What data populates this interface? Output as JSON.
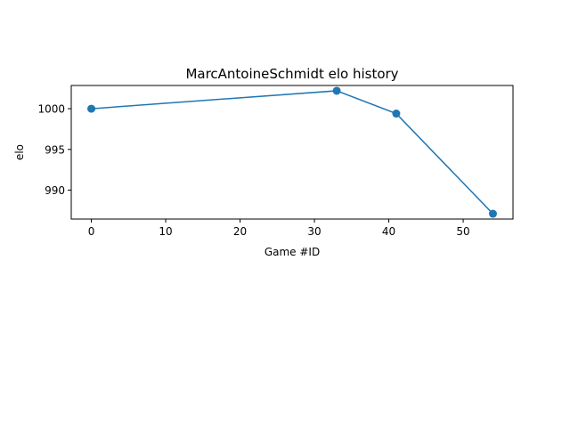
{
  "chart_data": {
    "type": "line",
    "title": "MarcAntoineSchmidt elo history",
    "xlabel": "Game #ID",
    "ylabel": "elo",
    "x": [
      0,
      33,
      41,
      54
    ],
    "series": [
      {
        "values": [
          1000.0,
          1002.2,
          999.4,
          987.1
        ],
        "color": "#1f77b4",
        "marker": "circle"
      }
    ],
    "xlim": [
      -2.7,
      56.7
    ],
    "ylim": [
      986.45,
      1002.85
    ],
    "xticks": [
      0,
      10,
      20,
      30,
      40,
      50
    ],
    "yticks": [
      990,
      995,
      1000
    ],
    "xtick_labels": [
      "0",
      "10",
      "20",
      "30",
      "40",
      "50"
    ],
    "ytick_labels": [
      "990",
      "995",
      "1000"
    ],
    "grid": false,
    "legend": "none"
  }
}
